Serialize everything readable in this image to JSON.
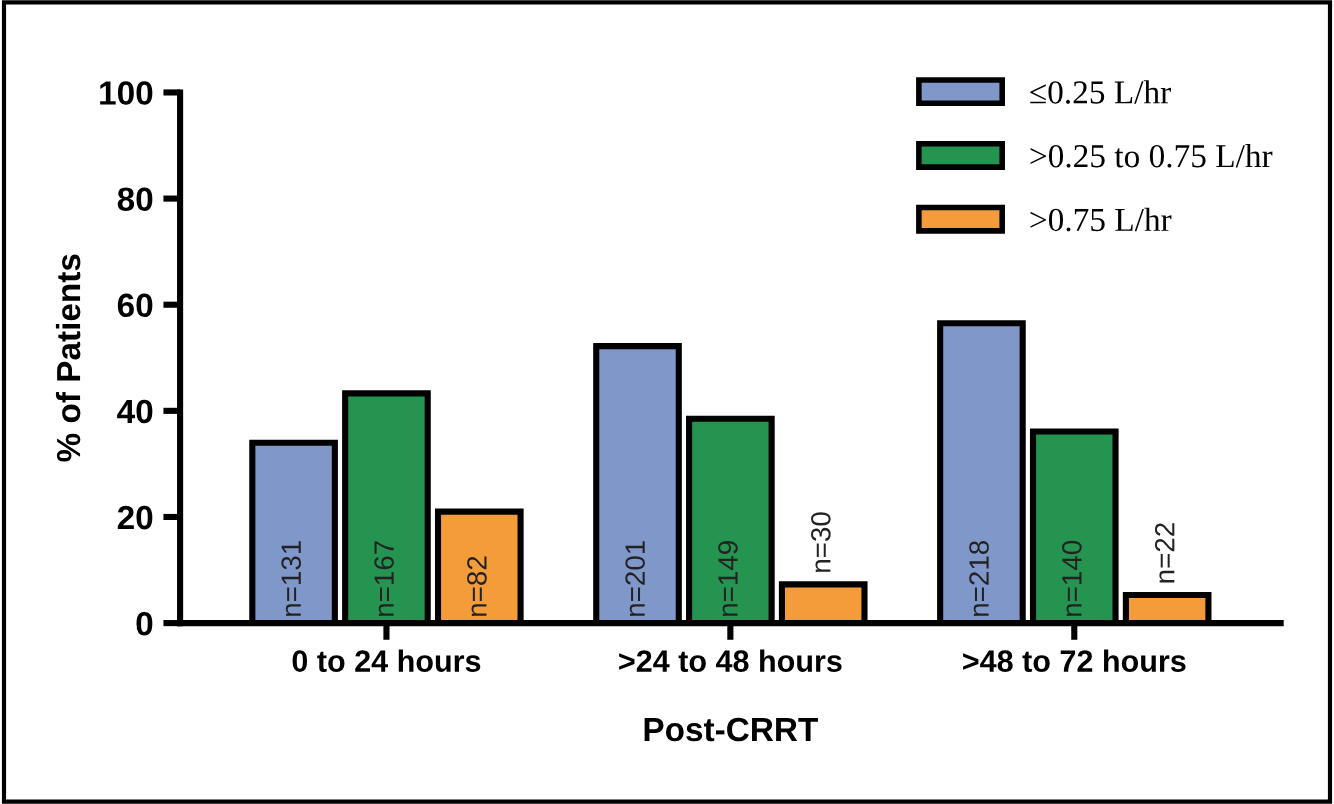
{
  "chart_data": {
    "type": "bar",
    "xlabel": "Post-CRRT",
    "ylabel": "% of Patients",
    "categories": [
      "0 to 24 hours",
      ">24 to 48 hours",
      ">48 to 72 hours"
    ],
    "series": [
      {
        "name": "≤0.25 L/hr",
        "color": "#7f97c9",
        "values": [
          34,
          52.2,
          56.5
        ]
      },
      {
        "name": ">0.25 to 0.75 L/hr",
        "color": "#259450",
        "values": [
          43.3,
          38.5,
          36.1
        ]
      },
      {
        "name": ">0.75 L/hr",
        "color": "#f59c3a",
        "values": [
          21,
          7.3,
          5.3
        ]
      }
    ],
    "annotations": [
      "n=131",
      "n=201",
      "n=218",
      "n=167",
      "n=149",
      "n=140",
      "n=82",
      "n=30",
      "n=22"
    ],
    "ylim": [
      0,
      100
    ],
    "yticks": [
      0,
      20,
      40,
      60,
      80,
      100
    ],
    "grid": false,
    "legend": "top right"
  }
}
